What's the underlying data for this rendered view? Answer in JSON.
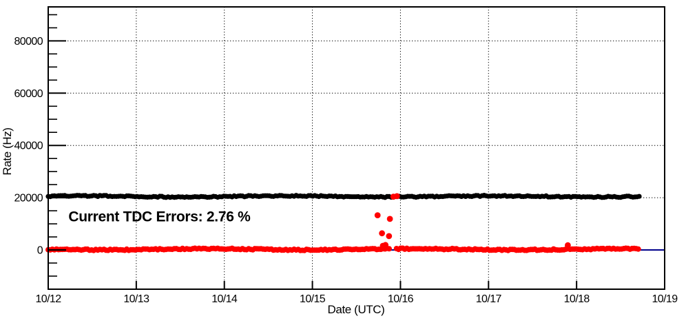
{
  "chart_data": {
    "type": "scatter",
    "title": "",
    "xlabel": "Date (UTC)",
    "ylabel": "Rate (Hz)",
    "xlim": [
      0,
      7
    ],
    "ylim": [
      -15000,
      93000
    ],
    "x_ticks": [
      {
        "value": 0,
        "label": "10/12"
      },
      {
        "value": 1,
        "label": "10/13"
      },
      {
        "value": 2,
        "label": "10/14"
      },
      {
        "value": 3,
        "label": "10/15"
      },
      {
        "value": 4,
        "label": "10/16"
      },
      {
        "value": 5,
        "label": "10/17"
      },
      {
        "value": 6,
        "label": "10/18"
      },
      {
        "value": 7,
        "label": "10/19"
      }
    ],
    "y_ticks": [
      {
        "value": 0,
        "label": "0"
      },
      {
        "value": 20000,
        "label": "20000"
      },
      {
        "value": 40000,
        "label": "40000"
      },
      {
        "value": 60000,
        "label": "60000"
      },
      {
        "value": 80000,
        "label": "80000"
      }
    ],
    "y_minor_step": 5000,
    "grid": {
      "style": "dotted",
      "color": "#000000"
    },
    "legend": "none",
    "series": [
      {
        "name": "zero-reference-line",
        "type": "line",
        "color": "#00008b",
        "y": 0,
        "x_start": 0,
        "x_end": 7
      },
      {
        "name": "event-rate",
        "type": "band",
        "color": "#000000",
        "segments": [
          {
            "x_start": 0,
            "x_end": 6.73,
            "y": 20500
          }
        ]
      },
      {
        "name": "tdc-error-rate",
        "type": "band",
        "color": "#ff0000",
        "segments": [
          {
            "x_start": 0,
            "x_end": 3.885,
            "y": 250
          },
          {
            "x_start": 3.955,
            "x_end": 6.71,
            "y": 250
          }
        ],
        "outliers": [
          [
            3.74,
            13300
          ],
          [
            3.79,
            6400
          ],
          [
            3.8,
            1600
          ],
          [
            3.83,
            1900
          ],
          [
            3.87,
            5300
          ],
          [
            3.88,
            11900
          ],
          [
            3.92,
            20400
          ],
          [
            3.96,
            20600
          ],
          [
            5.9,
            1800
          ]
        ]
      }
    ],
    "annotation": {
      "text": "Current TDC Errors: 2.76 %",
      "color": "#ff0000",
      "x": 0.23,
      "y": 11000
    }
  }
}
